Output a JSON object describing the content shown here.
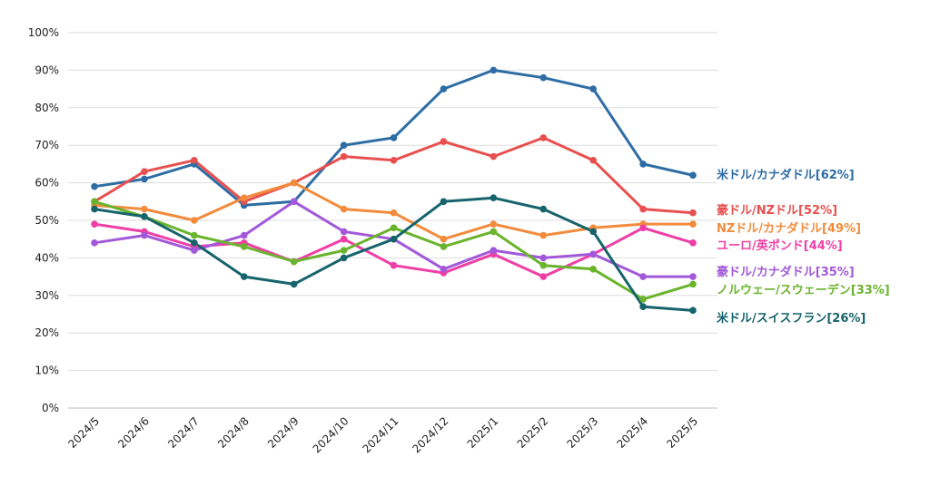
{
  "chart_data": {
    "type": "line",
    "categories": [
      "2024/5",
      "2024/6",
      "2024/7",
      "2024/8",
      "2024/9",
      "2024/10",
      "2024/11",
      "2024/12",
      "2025/1",
      "2025/2",
      "2025/3",
      "2025/4",
      "2025/5"
    ],
    "ylim": [
      0,
      100
    ],
    "yticks": [
      "0%",
      "10%",
      "20%",
      "30%",
      "40%",
      "50%",
      "60%",
      "70%",
      "80%",
      "90%",
      "100%"
    ],
    "grid": "horizontal",
    "series": [
      {
        "name": "米ドル/カナダドル[62%]",
        "color": "#2e6da4",
        "values": [
          59,
          61,
          65,
          54,
          55,
          70,
          72,
          85,
          90,
          88,
          85,
          65,
          62
        ]
      },
      {
        "name": "豪ドル/NZドル[52%]",
        "color": "#e8504f",
        "values": [
          55,
          63,
          66,
          55,
          60,
          67,
          66,
          71,
          67,
          72,
          66,
          53,
          52
        ]
      },
      {
        "name": "NZドル/カナダドル[49%]",
        "color": "#f28b3c",
        "values": [
          54,
          53,
          50,
          56,
          60,
          53,
          52,
          45,
          49,
          46,
          48,
          49,
          49
        ]
      },
      {
        "name": "ユーロ/英ポンド[44%]",
        "color": "#ef3fa6",
        "values": [
          49,
          47,
          43,
          44,
          39,
          45,
          38,
          36,
          41,
          35,
          41,
          48,
          44
        ]
      },
      {
        "name": "豪ドル/カナダドル[35%]",
        "color": "#a259d9",
        "values": [
          44,
          46,
          42,
          46,
          55,
          47,
          45,
          37,
          42,
          40,
          41,
          35,
          35
        ]
      },
      {
        "name": "ノルウェー/スウェーデン[33%]",
        "color": "#6ab42d",
        "values": [
          55,
          51,
          46,
          43,
          39,
          42,
          48,
          43,
          47,
          38,
          37,
          29,
          33
        ]
      },
      {
        "name": "米ドル/スイスフラン[26%]",
        "color": "#16646b",
        "values": [
          53,
          51,
          44,
          35,
          33,
          40,
          45,
          55,
          56,
          53,
          47,
          27,
          26
        ]
      }
    ]
  }
}
